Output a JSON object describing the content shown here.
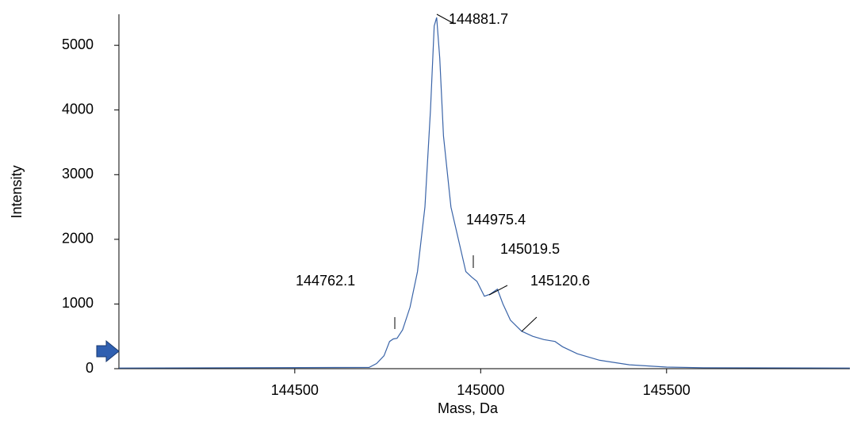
{
  "chart_data": {
    "type": "line",
    "x_label": "Mass, Da",
    "y_label": "Intensity",
    "x": [
      144027,
      144700,
      144720,
      144740,
      144755,
      144765,
      144775,
      144790,
      144810,
      144830,
      144850,
      144865,
      144875,
      144881.7,
      144890,
      144900,
      144920,
      144940,
      144960,
      144975,
      144990,
      145010,
      145025,
      145045,
      145060,
      145080,
      145110,
      145140,
      145170,
      145200,
      145220,
      145260,
      145320,
      145400,
      145500,
      145600,
      145993
    ],
    "values": [
      10,
      20,
      80,
      200,
      420,
      460,
      470,
      600,
      950,
      1500,
      2500,
      4000,
      5300,
      5430,
      4800,
      3600,
      2500,
      2000,
      1500,
      1420,
      1350,
      1120,
      1150,
      1230,
      1000,
      750,
      580,
      500,
      450,
      420,
      340,
      230,
      130,
      60,
      25,
      15,
      10
    ],
    "color": "#3a64a8",
    "peak_labels": [
      144881.7,
      144975.4,
      145019.5,
      145120.6,
      144762.1
    ],
    "xlim": [
      144027,
      145993
    ],
    "ylim": [
      0,
      5480
    ],
    "xticks": [
      144500,
      145000,
      145500
    ],
    "yticks": [
      0,
      1000,
      2000,
      3000,
      4000,
      5000
    ]
  }
}
